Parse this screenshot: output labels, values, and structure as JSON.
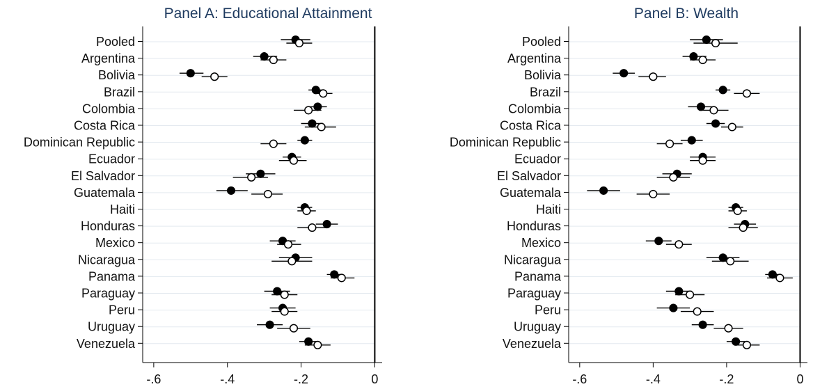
{
  "chart_data": [
    {
      "type": "scatter",
      "title": "Panel A: Educational Attainment",
      "xlabel": "",
      "ylabel": "",
      "xlim": [
        -0.63,
        0.02
      ],
      "xticks": [
        -0.6,
        -0.4,
        -0.2,
        0
      ],
      "xtick_labels": [
        "-.6",
        "-.4",
        "-.2",
        "0"
      ],
      "grid": true,
      "categories": [
        "Pooled",
        "Argentina",
        "Bolivia",
        "Brazil",
        "Colombia",
        "Costa Rica",
        "Dominican Republic",
        "Ecuador",
        "El Salvador",
        "Guatemala",
        "Haiti",
        "Honduras",
        "Mexico",
        "Nicaragua",
        "Panama",
        "Paraguay",
        "Peru",
        "Uruguay",
        "Venezuela"
      ],
      "series": [
        {
          "marker": "filled",
          "values": [
            -0.215,
            -0.3,
            -0.5,
            -0.16,
            -0.155,
            -0.17,
            -0.19,
            -0.225,
            -0.31,
            -0.39,
            -0.19,
            -0.13,
            -0.25,
            -0.215,
            -0.11,
            -0.265,
            -0.25,
            -0.285,
            -0.18
          ],
          "ci_low": [
            -0.255,
            -0.33,
            -0.53,
            -0.18,
            -0.18,
            -0.2,
            -0.21,
            -0.25,
            -0.35,
            -0.43,
            -0.21,
            -0.16,
            -0.285,
            -0.26,
            -0.13,
            -0.3,
            -0.285,
            -0.32,
            -0.205
          ],
          "ci_high": [
            -0.175,
            -0.265,
            -0.465,
            -0.14,
            -0.13,
            -0.14,
            -0.17,
            -0.2,
            -0.27,
            -0.345,
            -0.17,
            -0.1,
            -0.215,
            -0.17,
            -0.09,
            -0.23,
            -0.215,
            -0.25,
            -0.155
          ]
        },
        {
          "marker": "hollow",
          "values": [
            -0.205,
            -0.275,
            -0.435,
            -0.14,
            -0.18,
            -0.145,
            -0.275,
            -0.22,
            -0.335,
            -0.29,
            -0.185,
            -0.17,
            -0.235,
            -0.225,
            -0.09,
            -0.245,
            -0.245,
            -0.22,
            -0.155
          ],
          "ci_low": [
            -0.24,
            -0.31,
            -0.47,
            -0.165,
            -0.22,
            -0.19,
            -0.31,
            -0.26,
            -0.385,
            -0.335,
            -0.21,
            -0.21,
            -0.265,
            -0.28,
            -0.12,
            -0.28,
            -0.28,
            -0.265,
            -0.19
          ],
          "ci_high": [
            -0.17,
            -0.24,
            -0.4,
            -0.115,
            -0.145,
            -0.105,
            -0.24,
            -0.185,
            -0.29,
            -0.25,
            -0.16,
            -0.13,
            -0.2,
            -0.17,
            -0.055,
            -0.21,
            -0.21,
            -0.175,
            -0.12
          ]
        }
      ]
    },
    {
      "type": "scatter",
      "title": "Panel B: Wealth",
      "xlabel": "",
      "ylabel": "",
      "xlim": [
        -0.63,
        0.02
      ],
      "xticks": [
        -0.6,
        -0.4,
        -0.2,
        0
      ],
      "xtick_labels": [
        "-.6",
        "-.4",
        "-.2",
        "0"
      ],
      "grid": true,
      "categories": [
        "Pooled",
        "Argentina",
        "Bolivia",
        "Brazil",
        "Colombia",
        "Costa Rica",
        "Dominican Republic",
        "Ecuador",
        "El Salvador",
        "Guatemala",
        "Haiti",
        "Honduras",
        "Mexico",
        "Nicaragua",
        "Panama",
        "Paraguay",
        "Peru",
        "Uruguay",
        "Venezuela"
      ],
      "series": [
        {
          "marker": "filled",
          "values": [
            -0.255,
            -0.29,
            -0.48,
            -0.21,
            -0.27,
            -0.23,
            -0.295,
            -0.265,
            -0.335,
            -0.535,
            -0.175,
            -0.15,
            -0.385,
            -0.21,
            -0.075,
            -0.33,
            -0.345,
            -0.265,
            -0.175
          ],
          "ci_low": [
            -0.3,
            -0.32,
            -0.51,
            -0.23,
            -0.305,
            -0.255,
            -0.325,
            -0.3,
            -0.375,
            -0.58,
            -0.195,
            -0.18,
            -0.42,
            -0.255,
            -0.095,
            -0.365,
            -0.39,
            -0.295,
            -0.2
          ],
          "ci_high": [
            -0.21,
            -0.255,
            -0.45,
            -0.19,
            -0.235,
            -0.205,
            -0.265,
            -0.23,
            -0.295,
            -0.49,
            -0.155,
            -0.12,
            -0.35,
            -0.165,
            -0.055,
            -0.295,
            -0.3,
            -0.235,
            -0.15
          ]
        },
        {
          "marker": "hollow",
          "values": [
            -0.23,
            -0.265,
            -0.4,
            -0.145,
            -0.235,
            -0.185,
            -0.355,
            -0.265,
            -0.345,
            -0.4,
            -0.17,
            -0.155,
            -0.33,
            -0.19,
            -0.055,
            -0.3,
            -0.28,
            -0.195,
            -0.145
          ],
          "ci_low": [
            -0.29,
            -0.3,
            -0.44,
            -0.18,
            -0.275,
            -0.215,
            -0.39,
            -0.3,
            -0.39,
            -0.445,
            -0.195,
            -0.195,
            -0.365,
            -0.24,
            -0.09,
            -0.34,
            -0.325,
            -0.235,
            -0.18
          ],
          "ci_high": [
            -0.17,
            -0.23,
            -0.365,
            -0.11,
            -0.195,
            -0.155,
            -0.32,
            -0.23,
            -0.3,
            -0.355,
            -0.145,
            -0.115,
            -0.295,
            -0.14,
            -0.02,
            -0.26,
            -0.235,
            -0.155,
            -0.11
          ]
        }
      ]
    }
  ]
}
